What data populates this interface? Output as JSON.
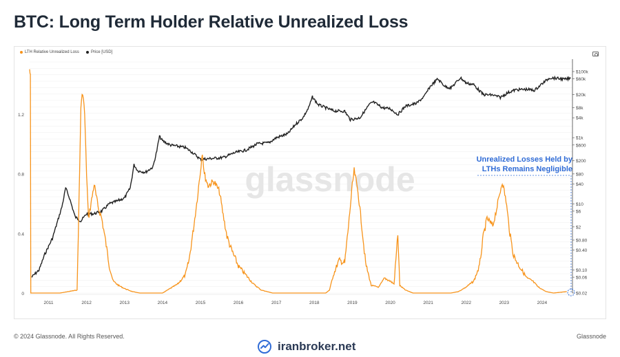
{
  "title": "BTC: Long Term Holder Relative Unrealized Loss",
  "watermark": "glassnode",
  "legend": {
    "loss_label": "LTH Relative Unrealized Loss",
    "price_label": "Price [USD]"
  },
  "annotation": {
    "line1": "Unrealized Losses Held by",
    "line2": "LTHs Remains Negligible"
  },
  "footer": {
    "copyright": "© 2024 Glassnode. All Rights Reserved.",
    "brand_right": "Glassnode",
    "logo_text": "iranbroker.net"
  },
  "colors": {
    "loss": "#f7931a",
    "price": "#222222",
    "annotation": "#2f6bd6",
    "grid": "#eeeeee"
  },
  "chart_data": {
    "type": "line",
    "title": "BTC: Long Term Holder Relative Unrealized Loss",
    "x_ticks": [
      "2011",
      "2012",
      "2013",
      "2014",
      "2015",
      "2016",
      "2017",
      "2018",
      "2019",
      "2020",
      "2021",
      "2022",
      "2023",
      "2024"
    ],
    "x_range": [
      2010.5,
      2024.8
    ],
    "y_left_ticks": [
      "0",
      "0.4",
      "0.8",
      "1.2"
    ],
    "y_left_range": [
      0,
      1.55
    ],
    "y_right_scale": "log",
    "y_right_ticks": [
      "$100k",
      "$60k",
      "$20k",
      "$8k",
      "$4k",
      "$1k",
      "$600",
      "$200",
      "$80",
      "$40",
      "$10",
      "$6",
      "$2",
      "$0.80",
      "$0.40",
      "$0.10",
      "$0.06",
      "$0.02"
    ],
    "y_right_range": [
      0.02,
      100000
    ],
    "grid": true,
    "legend_position": "top-left",
    "series": [
      {
        "name": "LTH Relative Unrealized Loss",
        "axis": "left",
        "points": [
          [
            2010.5,
            1.5
          ],
          [
            2010.52,
            1.45
          ],
          [
            2010.53,
            0
          ],
          [
            2011.3,
            0
          ],
          [
            2011.75,
            0.02
          ],
          [
            2011.8,
            0.6
          ],
          [
            2011.85,
            1.25
          ],
          [
            2011.9,
            1.35
          ],
          [
            2011.95,
            1.2
          ],
          [
            2012.0,
            0.8
          ],
          [
            2012.05,
            0.5
          ],
          [
            2012.15,
            0.65
          ],
          [
            2012.2,
            0.73
          ],
          [
            2012.3,
            0.58
          ],
          [
            2012.4,
            0.5
          ],
          [
            2012.5,
            0.35
          ],
          [
            2012.6,
            0.18
          ],
          [
            2012.7,
            0.08
          ],
          [
            2012.85,
            0.05
          ],
          [
            2013.0,
            0.03
          ],
          [
            2013.2,
            0.01
          ],
          [
            2013.4,
            0
          ],
          [
            2014.0,
            0
          ],
          [
            2014.2,
            0.03
          ],
          [
            2014.4,
            0.06
          ],
          [
            2014.6,
            0.12
          ],
          [
            2014.7,
            0.22
          ],
          [
            2014.8,
            0.4
          ],
          [
            2014.9,
            0.6
          ],
          [
            2015.0,
            0.82
          ],
          [
            2015.05,
            0.95
          ],
          [
            2015.1,
            0.8
          ],
          [
            2015.2,
            0.72
          ],
          [
            2015.35,
            0.75
          ],
          [
            2015.5,
            0.68
          ],
          [
            2015.6,
            0.52
          ],
          [
            2015.7,
            0.38
          ],
          [
            2015.8,
            0.3
          ],
          [
            2016.0,
            0.18
          ],
          [
            2016.2,
            0.12
          ],
          [
            2016.4,
            0.06
          ],
          [
            2016.6,
            0.02
          ],
          [
            2016.9,
            0
          ],
          [
            2018.3,
            0
          ],
          [
            2018.4,
            0.02
          ],
          [
            2018.5,
            0.12
          ],
          [
            2018.65,
            0.22
          ],
          [
            2018.8,
            0.2
          ],
          [
            2018.9,
            0.45
          ],
          [
            2019.0,
            0.72
          ],
          [
            2019.05,
            0.82
          ],
          [
            2019.15,
            0.68
          ],
          [
            2019.25,
            0.45
          ],
          [
            2019.35,
            0.2
          ],
          [
            2019.5,
            0.05
          ],
          [
            2019.7,
            0.04
          ],
          [
            2019.85,
            0.1
          ],
          [
            2020.0,
            0.08
          ],
          [
            2020.1,
            0.06
          ],
          [
            2020.2,
            0.4
          ],
          [
            2020.25,
            0.05
          ],
          [
            2020.4,
            0.02
          ],
          [
            2020.6,
            0
          ],
          [
            2021.6,
            0
          ],
          [
            2021.8,
            0.01
          ],
          [
            2022.0,
            0.04
          ],
          [
            2022.2,
            0.08
          ],
          [
            2022.35,
            0.18
          ],
          [
            2022.45,
            0.38
          ],
          [
            2022.55,
            0.5
          ],
          [
            2022.7,
            0.45
          ],
          [
            2022.85,
            0.62
          ],
          [
            2022.95,
            0.75
          ],
          [
            2023.05,
            0.62
          ],
          [
            2023.15,
            0.4
          ],
          [
            2023.25,
            0.25
          ],
          [
            2023.4,
            0.18
          ],
          [
            2023.6,
            0.1
          ],
          [
            2023.75,
            0.08
          ],
          [
            2023.9,
            0.04
          ],
          [
            2024.1,
            0.01
          ],
          [
            2024.3,
            0
          ],
          [
            2024.65,
            0.01
          ]
        ]
      },
      {
        "name": "Price [USD]",
        "axis": "right",
        "points": [
          [
            2010.55,
            0.06
          ],
          [
            2010.75,
            0.1
          ],
          [
            2010.9,
            0.3
          ],
          [
            2011.1,
            0.9
          ],
          [
            2011.35,
            8
          ],
          [
            2011.45,
            30
          ],
          [
            2011.55,
            15
          ],
          [
            2011.7,
            4
          ],
          [
            2011.85,
            3
          ],
          [
            2012.0,
            5
          ],
          [
            2012.2,
            5
          ],
          [
            2012.4,
            6
          ],
          [
            2012.6,
            10
          ],
          [
            2012.8,
            12
          ],
          [
            2013.0,
            15
          ],
          [
            2013.15,
            30
          ],
          [
            2013.25,
            150
          ],
          [
            2013.35,
            100
          ],
          [
            2013.55,
            90
          ],
          [
            2013.75,
            130
          ],
          [
            2013.85,
            400
          ],
          [
            2013.92,
            1100
          ],
          [
            2014.0,
            800
          ],
          [
            2014.2,
            600
          ],
          [
            2014.4,
            550
          ],
          [
            2014.6,
            500
          ],
          [
            2014.8,
            350
          ],
          [
            2015.0,
            220
          ],
          [
            2015.2,
            230
          ],
          [
            2015.4,
            240
          ],
          [
            2015.6,
            250
          ],
          [
            2015.9,
            350
          ],
          [
            2016.2,
            420
          ],
          [
            2016.5,
            650
          ],
          [
            2016.8,
            700
          ],
          [
            2017.0,
            1000
          ],
          [
            2017.3,
            1300
          ],
          [
            2017.5,
            2500
          ],
          [
            2017.7,
            4000
          ],
          [
            2017.85,
            8000
          ],
          [
            2017.95,
            17000
          ],
          [
            2018.1,
            10000
          ],
          [
            2018.3,
            8000
          ],
          [
            2018.5,
            6500
          ],
          [
            2018.8,
            6300
          ],
          [
            2018.95,
            3500
          ],
          [
            2019.2,
            4000
          ],
          [
            2019.45,
            10000
          ],
          [
            2019.55,
            12000
          ],
          [
            2019.8,
            8000
          ],
          [
            2020.0,
            7500
          ],
          [
            2020.2,
            5000
          ],
          [
            2020.4,
            9000
          ],
          [
            2020.7,
            11000
          ],
          [
            2020.9,
            18000
          ],
          [
            2021.05,
            35000
          ],
          [
            2021.25,
            60000
          ],
          [
            2021.45,
            35000
          ],
          [
            2021.6,
            32000
          ],
          [
            2021.85,
            65000
          ],
          [
            2022.0,
            45000
          ],
          [
            2022.2,
            40000
          ],
          [
            2022.45,
            20000
          ],
          [
            2022.7,
            19500
          ],
          [
            2022.9,
            16500
          ],
          [
            2023.1,
            23000
          ],
          [
            2023.3,
            28000
          ],
          [
            2023.6,
            29000
          ],
          [
            2023.8,
            27000
          ],
          [
            2024.0,
            43000
          ],
          [
            2024.2,
            65000
          ],
          [
            2024.4,
            62000
          ],
          [
            2024.6,
            58000
          ],
          [
            2024.75,
            62000
          ]
        ]
      }
    ]
  }
}
